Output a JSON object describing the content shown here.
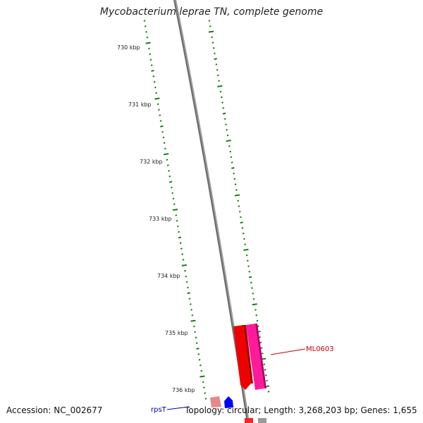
{
  "title": "Mycobacterium leprae TN, complete genome",
  "accession": "Accession: NC_002677",
  "topology": "Topology: circular; Length: 3,268,203 bp; Genes: 1,655",
  "ticks": [
    "730 kbp",
    "731 kbp",
    "732 kbp",
    "733 kbp",
    "734 kbp",
    "735 kbp",
    "736 kbp"
  ],
  "genes": [
    {
      "name": "ML0603",
      "color": "#cc0000"
    },
    {
      "name": "rpsT",
      "color": "#0000aa"
    }
  ],
  "colors": {
    "backbone": "#777777",
    "tick": "#1a7f1a",
    "gene_red": "#ff0000",
    "gene_magenta": "#ff22aa",
    "gene_blue": "#0000ff",
    "gene_pink": "#e88888"
  }
}
